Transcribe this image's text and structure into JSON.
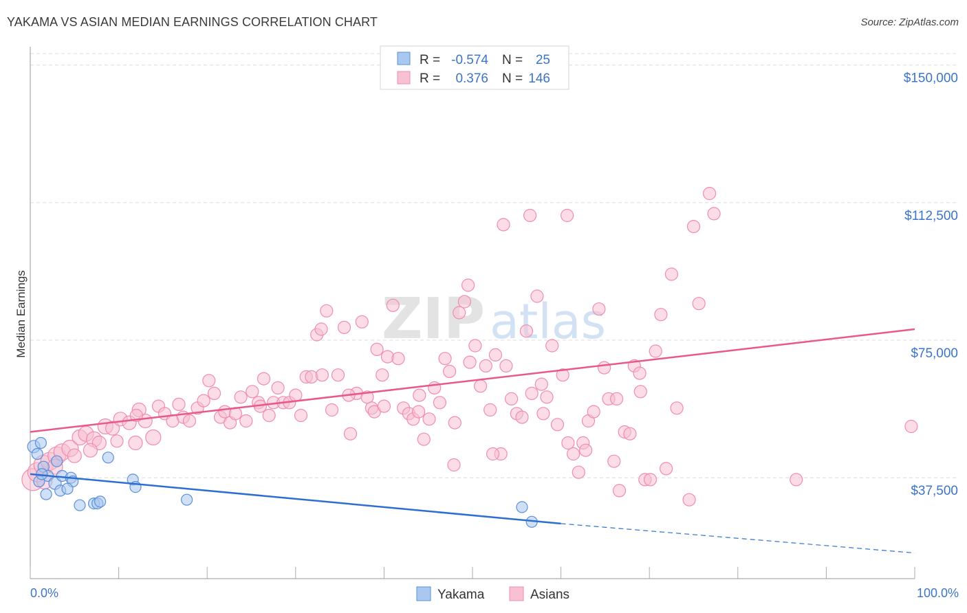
{
  "chart_data": {
    "type": "scatter",
    "title": "YAKAMA VS ASIAN MEDIAN EARNINGS CORRELATION CHART",
    "source": "Source: ZipAtlas.com",
    "xlabel": "",
    "ylabel": "Median Earnings",
    "xlim": [
      0,
      100
    ],
    "ylim": [
      10000,
      155000
    ],
    "y_ticks": [
      {
        "value": 37500,
        "label": "$37,500"
      },
      {
        "value": 75000,
        "label": "$75,000"
      },
      {
        "value": 112500,
        "label": "$112,500"
      },
      {
        "value": 150000,
        "label": "$150,000"
      }
    ],
    "x_tick_labels": {
      "min": "0.0%",
      "max": "100.0%"
    },
    "watermark": {
      "zip": "ZIP",
      "atlas": "atlas"
    },
    "legend": {
      "r_label": "R =",
      "n_label": "N =",
      "entries": [
        {
          "r": "-0.574",
          "n": "25"
        },
        {
          "r": "0.376",
          "n": "146"
        }
      ]
    },
    "series": [
      {
        "name": "Yakama",
        "color": "#5b8fd9",
        "fill": "#a9c8f0",
        "line_color": "#2d6fd1",
        "trend": {
          "x0": 0,
          "y0": 38500,
          "x1": 60,
          "y1": 25000,
          "dash_x1": 100,
          "dash_y1": 17000
        },
        "points": [
          [
            0.4,
            46000,
            9
          ],
          [
            1.2,
            47000,
            8
          ],
          [
            0.8,
            44000,
            8
          ],
          [
            1.5,
            40500,
            8
          ],
          [
            2.0,
            38000,
            8
          ],
          [
            1.0,
            36500,
            8
          ],
          [
            1.8,
            33000,
            8
          ],
          [
            2.8,
            36000,
            9
          ],
          [
            3.4,
            34000,
            8
          ],
          [
            3.6,
            38000,
            8
          ],
          [
            4.6,
            37500,
            8
          ],
          [
            4.8,
            36500,
            8
          ],
          [
            4.2,
            34500,
            8
          ],
          [
            5.6,
            30000,
            8
          ],
          [
            7.2,
            30500,
            8
          ],
          [
            7.6,
            30500,
            8
          ],
          [
            7.9,
            31000,
            8
          ],
          [
            8.8,
            43000,
            8
          ],
          [
            11.6,
            37000,
            8
          ],
          [
            11.9,
            35000,
            8
          ],
          [
            17.7,
            31500,
            8
          ],
          [
            55.6,
            29500,
            8
          ],
          [
            56.7,
            25500,
            8
          ],
          [
            3.0,
            42000,
            8
          ],
          [
            1.3,
            38500,
            8
          ]
        ]
      },
      {
        "name": "Asians",
        "color": "#f08cae",
        "fill": "#f8c0d3",
        "line_color": "#e8588a",
        "trend": {
          "x0": 0,
          "y0": 50000,
          "x1": 100,
          "y1": 78000
        },
        "points": [
          [
            0.3,
            37000,
            16
          ],
          [
            0.8,
            39000,
            14
          ],
          [
            1.5,
            41000,
            14
          ],
          [
            2.2,
            42000,
            13
          ],
          [
            3.0,
            43500,
            13
          ],
          [
            3.6,
            44500,
            12
          ],
          [
            4.5,
            45500,
            12
          ],
          [
            5.6,
            48500,
            11
          ],
          [
            6.3,
            49500,
            11
          ],
          [
            7.2,
            48000,
            11
          ],
          [
            7.8,
            47000,
            10
          ],
          [
            8.5,
            51500,
            11
          ],
          [
            9.3,
            51000,
            10
          ],
          [
            10.2,
            53500,
            10
          ],
          [
            11.2,
            52500,
            10
          ],
          [
            11.9,
            47000,
            10
          ],
          [
            12.3,
            56000,
            10
          ],
          [
            13.0,
            53000,
            10
          ],
          [
            13.9,
            48500,
            11
          ],
          [
            14.5,
            57000,
            9
          ],
          [
            15.2,
            55000,
            9
          ],
          [
            16.1,
            53000,
            9
          ],
          [
            17.3,
            54000,
            9
          ],
          [
            18.0,
            53000,
            9
          ],
          [
            18.9,
            56500,
            9
          ],
          [
            19.6,
            58500,
            9
          ],
          [
            20.2,
            64000,
            9
          ],
          [
            20.8,
            60500,
            9
          ],
          [
            21.5,
            54000,
            9
          ],
          [
            22.0,
            55500,
            9
          ],
          [
            22.6,
            52500,
            9
          ],
          [
            23.2,
            55000,
            9
          ],
          [
            23.8,
            59500,
            9
          ],
          [
            24.4,
            53000,
            9
          ],
          [
            25.1,
            61000,
            9
          ],
          [
            25.8,
            58000,
            9
          ],
          [
            26.4,
            64500,
            9
          ],
          [
            27.0,
            54500,
            9
          ],
          [
            27.5,
            58000,
            9
          ],
          [
            28.0,
            62000,
            9
          ],
          [
            28.6,
            58000,
            9
          ],
          [
            29.3,
            58000,
            9
          ],
          [
            30.0,
            60000,
            9
          ],
          [
            30.6,
            54500,
            9
          ],
          [
            31.2,
            65000,
            9
          ],
          [
            31.8,
            65000,
            9
          ],
          [
            32.4,
            76500,
            9
          ],
          [
            32.9,
            78000,
            9
          ],
          [
            33.5,
            83000,
            9
          ],
          [
            34.1,
            56000,
            9
          ],
          [
            34.8,
            65500,
            9
          ],
          [
            35.5,
            78500,
            9
          ],
          [
            36.2,
            49500,
            9
          ],
          [
            36.9,
            60500,
            9
          ],
          [
            37.5,
            80000,
            9
          ],
          [
            38.1,
            59500,
            9
          ],
          [
            38.6,
            56500,
            9
          ],
          [
            39.2,
            72500,
            9
          ],
          [
            39.8,
            65500,
            9
          ],
          [
            40.4,
            70500,
            9
          ],
          [
            41.0,
            84500,
            9
          ],
          [
            41.6,
            70000,
            9
          ],
          [
            42.2,
            56500,
            9
          ],
          [
            42.8,
            55000,
            9
          ],
          [
            43.3,
            53500,
            9
          ],
          [
            43.9,
            55500,
            9
          ],
          [
            44.5,
            48000,
            9
          ],
          [
            45.1,
            53500,
            9
          ],
          [
            45.7,
            62000,
            9
          ],
          [
            46.3,
            58000,
            9
          ],
          [
            46.9,
            70000,
            9
          ],
          [
            47.4,
            66500,
            9
          ],
          [
            47.9,
            41000,
            9
          ],
          [
            48.5,
            82500,
            9
          ],
          [
            49.1,
            85500,
            9
          ],
          [
            49.7,
            69000,
            9
          ],
          [
            50.3,
            73500,
            9
          ],
          [
            50.9,
            62500,
            9
          ],
          [
            51.5,
            68000,
            9
          ],
          [
            52.0,
            56000,
            9
          ],
          [
            52.6,
            71000,
            9
          ],
          [
            53.2,
            44000,
            9
          ],
          [
            53.8,
            68000,
            9
          ],
          [
            54.4,
            59000,
            9
          ],
          [
            55.0,
            55000,
            9
          ],
          [
            55.6,
            54000,
            9
          ],
          [
            56.1,
            77500,
            9
          ],
          [
            56.7,
            60500,
            9
          ],
          [
            57.3,
            87000,
            9
          ],
          [
            57.8,
            63000,
            9
          ],
          [
            58.4,
            59500,
            9
          ],
          [
            59.0,
            73500,
            9
          ],
          [
            59.6,
            52000,
            9
          ],
          [
            60.2,
            65500,
            9
          ],
          [
            60.8,
            47000,
            9
          ],
          [
            61.4,
            44000,
            9
          ],
          [
            62.0,
            39000,
            9
          ],
          [
            62.5,
            47000,
            9
          ],
          [
            63.1,
            53000,
            9
          ],
          [
            63.7,
            55500,
            9
          ],
          [
            64.3,
            83500,
            9
          ],
          [
            64.9,
            67500,
            9
          ],
          [
            65.4,
            59000,
            9
          ],
          [
            66.0,
            42000,
            9
          ],
          [
            66.6,
            34000,
            9
          ],
          [
            67.2,
            50000,
            9
          ],
          [
            67.8,
            49500,
            9
          ],
          [
            68.3,
            68000,
            9
          ],
          [
            68.9,
            66000,
            9
          ],
          [
            69.5,
            37000,
            9
          ],
          [
            70.1,
            37000,
            9
          ],
          [
            70.7,
            72000,
            9
          ],
          [
            71.3,
            82000,
            9
          ],
          [
            71.9,
            40000,
            9
          ],
          [
            72.5,
            93000,
            9
          ],
          [
            73.1,
            56500,
            9
          ],
          [
            74.5,
            31500,
            9
          ],
          [
            75.0,
            106000,
            9
          ],
          [
            75.6,
            85000,
            9
          ],
          [
            76.8,
            115000,
            9
          ],
          [
            77.3,
            109500,
            9
          ],
          [
            53.5,
            106500,
            9
          ],
          [
            56.5,
            109000,
            9
          ],
          [
            60.7,
            109000,
            9
          ],
          [
            49.5,
            90000,
            9
          ],
          [
            86.6,
            37000,
            9
          ],
          [
            99.6,
            51500,
            9
          ],
          [
            9.8,
            47500,
            9
          ],
          [
            12.0,
            54500,
            9
          ],
          [
            16.8,
            57500,
            9
          ],
          [
            26.0,
            57000,
            9
          ],
          [
            33.0,
            65500,
            9
          ],
          [
            36.0,
            60000,
            9
          ],
          [
            38.9,
            55500,
            9
          ],
          [
            40.0,
            57000,
            9
          ],
          [
            44.0,
            60000,
            9
          ],
          [
            48.0,
            52500,
            9
          ],
          [
            52.3,
            44000,
            9
          ],
          [
            58.0,
            55000,
            9
          ],
          [
            62.8,
            45000,
            9
          ],
          [
            66.3,
            59000,
            9
          ],
          [
            69.0,
            61000,
            9
          ],
          [
            5.0,
            43500,
            10
          ],
          [
            2.8,
            40500,
            11
          ],
          [
            1.6,
            36500,
            11
          ],
          [
            6.8,
            45000,
            10
          ]
        ]
      }
    ]
  },
  "bottom_legend": [
    {
      "label": "Yakama"
    },
    {
      "label": "Asians"
    }
  ]
}
